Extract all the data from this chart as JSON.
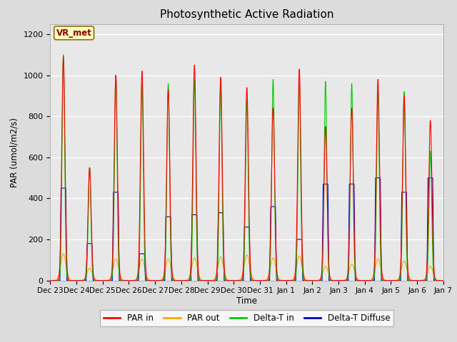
{
  "title": "Photosynthetic Active Radiation",
  "ylabel": "PAR (umol/m2/s)",
  "xlabel": "Time",
  "annotation": "VR_met",
  "ylim": [
    0,
    1250
  ],
  "yticks": [
    0,
    200,
    400,
    600,
    800,
    1000,
    1200
  ],
  "background_color": "#dcdcdc",
  "axes_bg": "#e8e8e8",
  "legend_items": [
    "PAR in",
    "PAR out",
    "Delta-T in",
    "Delta-T Diffuse"
  ],
  "legend_colors": [
    "#ff0000",
    "#ffa500",
    "#00cc00",
    "#0000cc"
  ],
  "num_days": 15,
  "par_in_peaks": [
    1090,
    550,
    1000,
    1020,
    930,
    1050,
    990,
    940,
    840,
    1030,
    750,
    840,
    980,
    900,
    780
  ],
  "par_out_peaks": [
    130,
    60,
    105,
    105,
    105,
    110,
    115,
    125,
    110,
    120,
    70,
    80,
    105,
    95,
    70
  ],
  "delta_t_in_peaks": [
    1100,
    550,
    1000,
    960,
    960,
    980,
    970,
    880,
    980,
    970,
    970,
    960,
    920,
    920,
    630
  ],
  "delta_t_diff_peaks": [
    450,
    180,
    430,
    130,
    310,
    320,
    330,
    260,
    360,
    200,
    470,
    470,
    500,
    430,
    500
  ],
  "xtick_labels": [
    "Dec 23",
    "Dec 24",
    "Dec 25",
    "Dec 26",
    "Dec 27",
    "Dec 28",
    "Dec 29",
    "Dec 30",
    "Dec 31",
    "Jan 1",
    "Jan 2",
    "Jan 3",
    "Jan 4",
    "Jan 5",
    "Jan 6",
    "Jan 7"
  ]
}
